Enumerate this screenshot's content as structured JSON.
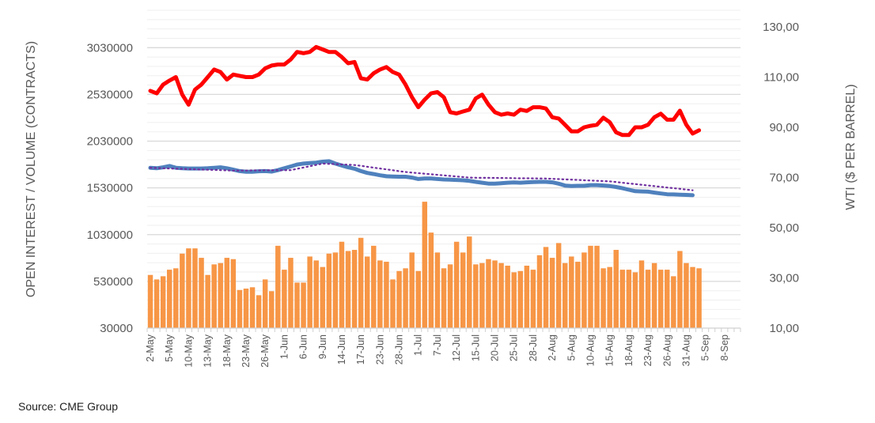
{
  "chart_data": {
    "type": "bar+line",
    "left_axis": {
      "label": "OPEN INTEREST / VOLUME (CONTRACTS)",
      "ticks": [
        30000,
        530000,
        1030000,
        1530000,
        2030000,
        2530000,
        3030000
      ],
      "tick_labels": [
        "30000",
        "530000",
        "1030000",
        "1530000",
        "2030000",
        "2530000",
        "3030000"
      ],
      "ylim": [
        30000,
        3430000
      ]
    },
    "right_axis": {
      "label": "WTI ($ PER BARREL)",
      "ticks": [
        10,
        30,
        50,
        70,
        90,
        110,
        130
      ],
      "tick_labels": [
        "10,00",
        "30,00",
        "50,00",
        "70,00",
        "90,00",
        "110,00",
        "130,00"
      ],
      "ylim": [
        10,
        136.6
      ]
    },
    "x_tick_labels": [
      "2-May",
      "5-May",
      "10-May",
      "13-May",
      "18-May",
      "23-May",
      "26-May",
      "1-Jun",
      "6-Jun",
      "9-Jun",
      "14-Jun",
      "17-Jun",
      "23-Jun",
      "28-Jun",
      "1-Jul",
      "7-Jul",
      "12-Jul",
      "15-Jul",
      "20-Jul",
      "25-Jul",
      "28-Jul",
      "2-Aug",
      "5-Aug",
      "10-Aug",
      "15-Aug",
      "18-Aug",
      "23-Aug",
      "26-Aug",
      "31-Aug",
      "5-Sep",
      "8-Sep"
    ],
    "grid": true,
    "colors": {
      "volume": "#f79646",
      "open_interest": "#4f81bd",
      "moving_average": "#7030a0",
      "wti": "#ff0000"
    },
    "series": [
      {
        "kind": "bar",
        "axis": "left",
        "color": "#f79646",
        "values": [
          599000,
          551000,
          585000,
          655000,
          670000,
          827000,
          883000,
          883000,
          782000,
          599000,
          712000,
          726000,
          782000,
          768000,
          438000,
          453000,
          467000,
          382000,
          551000,
          425000,
          911000,
          655000,
          782000,
          517000,
          517000,
          796000,
          754000,
          684000,
          827000,
          839000,
          954000,
          855000,
          867000,
          996000,
          796000,
          911000,
          754000,
          740000,
          551000,
          641000,
          670000,
          839000,
          641000,
          1382000,
          1052000,
          839000,
          670000,
          712000,
          954000,
          839000,
          1010000,
          712000,
          726000,
          768000,
          754000,
          726000,
          698000,
          627000,
          641000,
          698000,
          655000,
          810000,
          898000,
          782000,
          940000,
          726000,
          796000,
          740000,
          839000,
          911000,
          911000,
          670000,
          684000,
          867000,
          655000,
          655000,
          627000,
          754000,
          655000,
          726000,
          655000,
          655000,
          585000,
          855000,
          726000,
          684000,
          670000
        ]
      },
      {
        "kind": "line",
        "axis": "left",
        "color": "#4f81bd",
        "values": [
          1745000,
          1740000,
          1750000,
          1765000,
          1745000,
          1740000,
          1738000,
          1738000,
          1738000,
          1740000,
          1745000,
          1750000,
          1740000,
          1725000,
          1710000,
          1703000,
          1703000,
          1708000,
          1710000,
          1705000,
          1720000,
          1740000,
          1760000,
          1780000,
          1790000,
          1795000,
          1800000,
          1810000,
          1815000,
          1790000,
          1770000,
          1750000,
          1735000,
          1710000,
          1690000,
          1678000,
          1665000,
          1655000,
          1652000,
          1650000,
          1650000,
          1640000,
          1625000,
          1630000,
          1630000,
          1625000,
          1620000,
          1618000,
          1615000,
          1612000,
          1605000,
          1595000,
          1585000,
          1576000,
          1575000,
          1580000,
          1585000,
          1588000,
          1585000,
          1590000,
          1592000,
          1595000,
          1595000,
          1590000,
          1575000,
          1555000,
          1551000,
          1552000,
          1552000,
          1560000,
          1560000,
          1556000,
          1550000,
          1540000,
          1526000,
          1510000,
          1495000,
          1492000,
          1490000,
          1480000,
          1470000,
          1462000,
          1460000,
          1458000,
          1455000,
          1452000
        ]
      },
      {
        "kind": "dotted-line",
        "axis": "left",
        "color": "#7030a0",
        "values": [
          1745000,
          1743000,
          1740000,
          1738000,
          1736000,
          1733000,
          1731000,
          1729000,
          1726000,
          1724000,
          1722000,
          1720000,
          1717000,
          1715000,
          1716000,
          1716000,
          1717000,
          1717000,
          1718000,
          1718000,
          1719000,
          1719000,
          1720000,
          1734000,
          1748000,
          1762000,
          1776000,
          1790000,
          1787000,
          1784000,
          1781000,
          1778000,
          1775000,
          1766000,
          1756000,
          1747000,
          1738000,
          1728000,
          1719000,
          1709000,
          1700000,
          1694000,
          1688000,
          1682000,
          1676000,
          1670000,
          1664000,
          1658000,
          1652000,
          1646000,
          1640000,
          1639000,
          1638000,
          1638000,
          1637000,
          1636000,
          1635000,
          1634000,
          1633000,
          1633000,
          1632000,
          1631000,
          1630000,
          1627000,
          1624000,
          1621000,
          1618000,
          1615000,
          1612000,
          1609000,
          1606000,
          1603000,
          1600000,
          1593000,
          1585000,
          1578000,
          1571000,
          1563000,
          1556000,
          1549000,
          1541000,
          1534000,
          1527000,
          1520000,
          1512000,
          1505000
        ]
      },
      {
        "kind": "line",
        "axis": "right",
        "color": "#ff0000",
        "values": [
          104.5,
          103.5,
          107,
          108.6,
          110,
          103,
          99,
          105,
          107,
          110,
          113,
          112,
          109,
          111,
          110.5,
          110,
          110,
          111,
          113.5,
          114.6,
          115,
          115,
          117,
          120,
          119.5,
          120,
          122,
          121,
          120,
          120,
          118,
          115.5,
          116,
          109.5,
          109,
          111.5,
          113,
          114,
          112,
          111,
          107,
          102,
          98,
          101,
          103.5,
          104,
          102,
          96,
          95.5,
          96.3,
          97,
          101.5,
          103,
          99,
          96,
          95,
          95.5,
          95,
          97,
          96.5,
          98,
          98,
          97.5,
          94,
          93.5,
          91,
          88.4,
          88.4,
          90,
          90.6,
          91,
          93.8,
          92,
          88,
          86.9,
          86.9,
          90,
          90,
          91,
          94,
          95.4,
          93,
          93,
          96.6,
          91,
          87.5,
          88.8
        ]
      }
    ]
  },
  "source": "Source: CME Group"
}
